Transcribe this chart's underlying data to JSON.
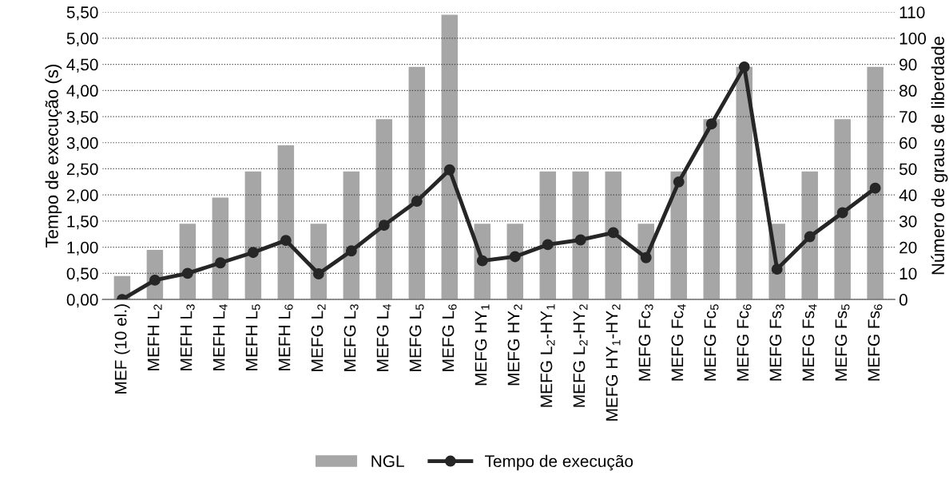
{
  "chart_data": {
    "type": "bar",
    "ylabel": "Tempo de execução (s)",
    "y2label": "Número de graus de liberdade",
    "categories": [
      "MEF (10 el.)",
      "MEFH L$_{2}$",
      "MEFH L$_{3}$",
      "MEFH L$_{4}$",
      "MEFH L$_{5}$",
      "MEFH L$_{6}$",
      "MEFG L$_{2}$",
      "MEFG L$_{3}$",
      "MEFG L$_{4}$",
      "MEFG L$_{5}$",
      "MEFG L$_{6}$",
      "MEFG HY$_{1}$",
      "MEFG HY$_{2}$",
      "MEFG L$_{2}$-HY$_{1}$",
      "MEFG L$_{2}$-HY$_{2}$",
      "MEFG HY$_{1}$-HY$_{2}$",
      "MEFG Fc$_{3}$",
      "MEFG Fc$_{4}$",
      "MEFG Fc$_{5}$",
      "MEFG Fc$_{6}$",
      "MEFG Fs$_{3}$",
      "MEFG Fs$_{4}$",
      "MEFG Fs$_{5}$",
      "MEFG Fs$_{6}$"
    ],
    "series": [
      {
        "name": "NGL",
        "axis": "y2",
        "color": "#a6a6a6",
        "values": [
          9,
          19,
          29,
          39,
          49,
          59,
          29,
          49,
          69,
          89,
          109,
          29,
          29,
          49,
          49,
          49,
          29,
          49,
          69,
          89,
          29,
          49,
          69,
          89
        ]
      },
      {
        "name": "Tempo de execução",
        "type": "line",
        "axis": "y",
        "color": "#262626",
        "values": [
          0.0,
          0.37,
          0.5,
          0.7,
          0.9,
          1.13,
          0.49,
          0.93,
          1.42,
          1.88,
          2.48,
          0.74,
          0.82,
          1.05,
          1.14,
          1.28,
          0.8,
          2.25,
          3.36,
          4.45,
          0.58,
          1.2,
          1.66,
          2.13
        ]
      }
    ],
    "ylim": [
      0,
      5.5
    ],
    "yticks": [
      {
        "value": 0,
        "label": "0,00"
      },
      {
        "value": 0.5,
        "label": "0,50"
      },
      {
        "value": 1,
        "label": "1,00"
      },
      {
        "value": 1.5,
        "label": "1,50"
      },
      {
        "value": 2,
        "label": "2,00"
      },
      {
        "value": 2.5,
        "label": "2,50"
      },
      {
        "value": 3,
        "label": "3,00"
      },
      {
        "value": 3.5,
        "label": "3,50"
      },
      {
        "value": 4,
        "label": "4,00"
      },
      {
        "value": 4.5,
        "label": "4,50"
      },
      {
        "value": 5,
        "label": "5,00"
      },
      {
        "value": 5.5,
        "label": "5,50"
      }
    ],
    "y2lim": [
      0,
      110
    ],
    "y2ticks": [
      0,
      10,
      20,
      30,
      40,
      50,
      60,
      70,
      80,
      90,
      100,
      110
    ],
    "grid": "y",
    "legend": "bottom",
    "marker": "circle",
    "line_style": "solid"
  }
}
